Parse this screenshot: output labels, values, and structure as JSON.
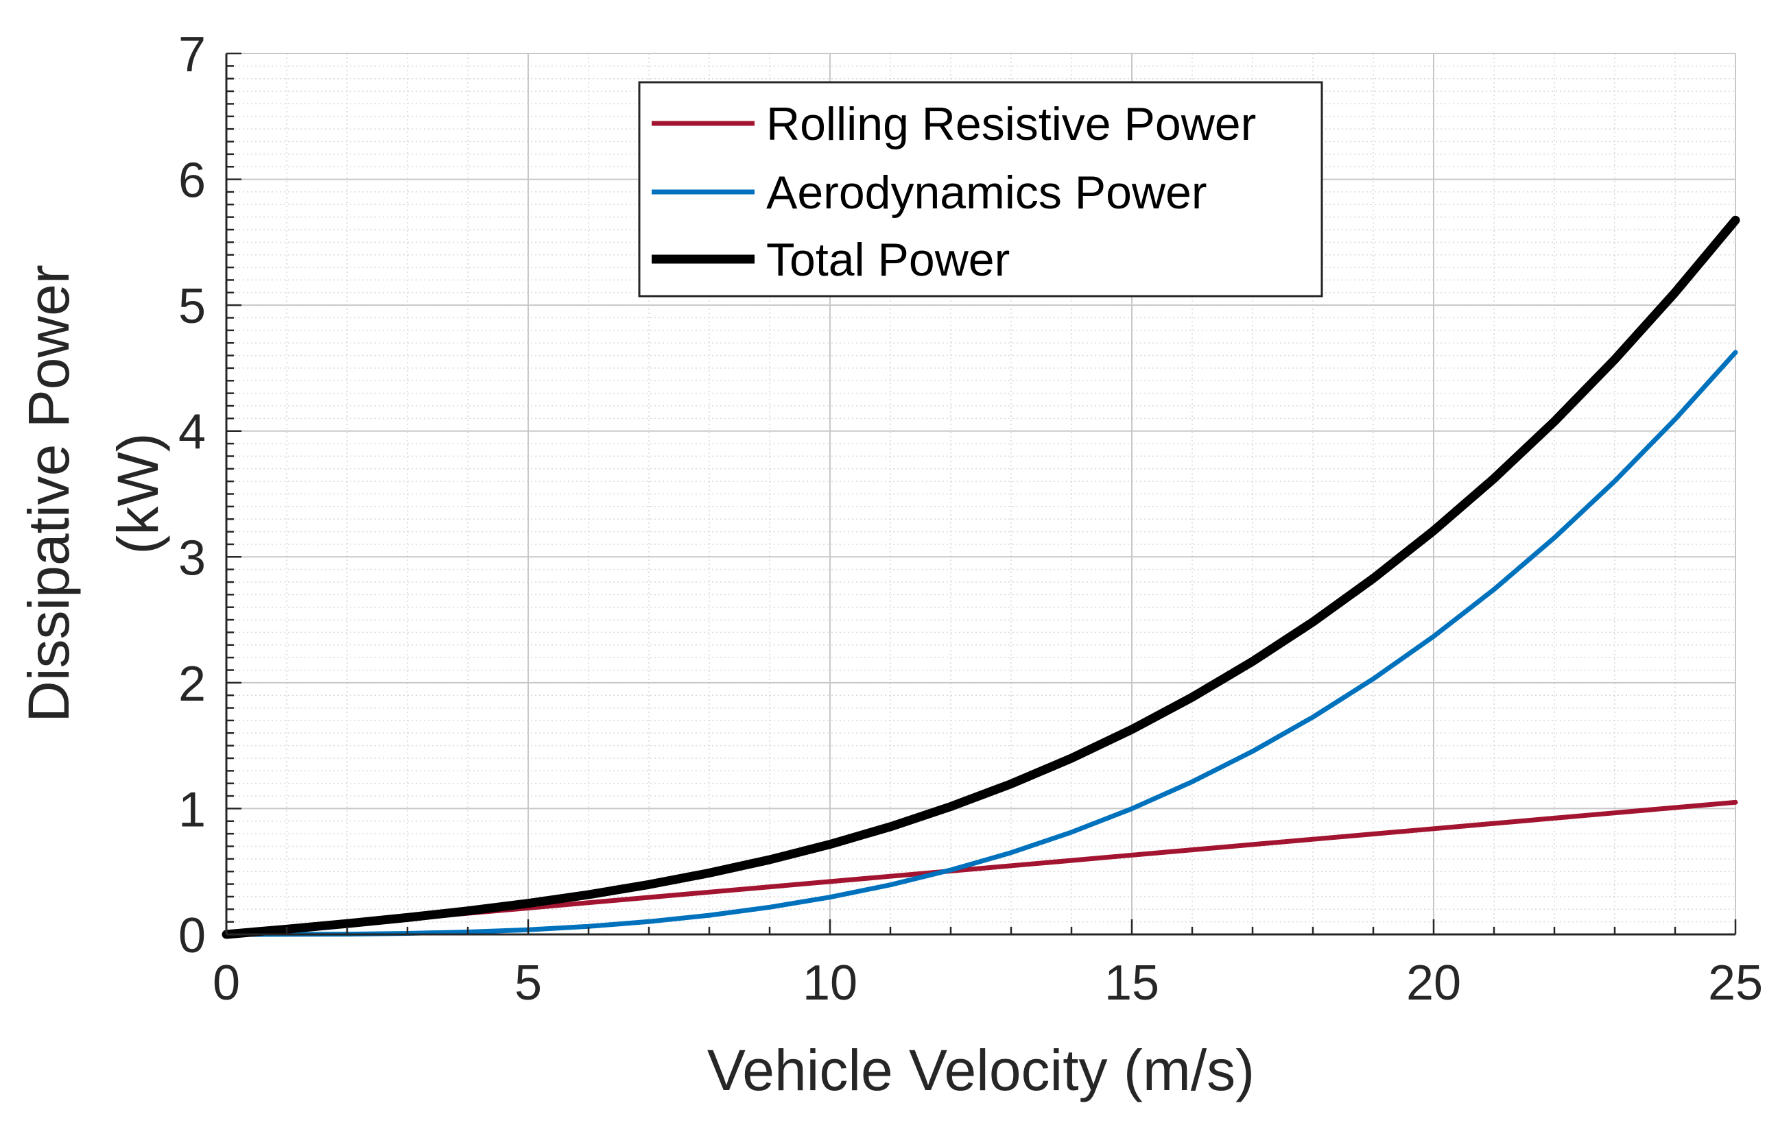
{
  "chart_data": {
    "type": "line",
    "xlabel": "Vehicle Velocity (m/s)",
    "ylabel_line1": "Dissipative Power",
    "ylabel_line2": "(kW)",
    "xlim": [
      0,
      25
    ],
    "ylim": [
      0,
      7
    ],
    "xticks": [
      0,
      5,
      10,
      15,
      20,
      25
    ],
    "yticks": [
      0,
      1,
      2,
      3,
      4,
      5,
      6,
      7
    ],
    "xtick_labels": [
      "0",
      "5",
      "10",
      "15",
      "20",
      "25"
    ],
    "ytick_labels": [
      "0",
      "1",
      "2",
      "3",
      "4",
      "5",
      "6",
      "7"
    ],
    "grid": true,
    "minor_grid": true,
    "legend_position": "top-center",
    "x": [
      0,
      1,
      2,
      3,
      4,
      5,
      6,
      7,
      8,
      9,
      10,
      11,
      12,
      13,
      14,
      15,
      16,
      17,
      18,
      19,
      20,
      21,
      22,
      23,
      24,
      25
    ],
    "series": [
      {
        "name": "Rolling Resistive Power",
        "color": "#A2142F",
        "width": "thin",
        "values": [
          0,
          0.042,
          0.084,
          0.126,
          0.168,
          0.21,
          0.252,
          0.294,
          0.336,
          0.378,
          0.42,
          0.462,
          0.504,
          0.546,
          0.588,
          0.63,
          0.672,
          0.714,
          0.756,
          0.798,
          0.84,
          0.882,
          0.924,
          0.966,
          1.008,
          1.05
        ]
      },
      {
        "name": "Aerodynamics Power",
        "color": "#0072BD",
        "width": "thin",
        "values": [
          0,
          0.0003,
          0.0024,
          0.008,
          0.019,
          0.037,
          0.064,
          0.102,
          0.152,
          0.216,
          0.296,
          0.394,
          0.512,
          0.65,
          0.812,
          0.999,
          1.213,
          1.455,
          1.727,
          2.031,
          2.368,
          2.741,
          3.152,
          3.602,
          4.093,
          4.625
        ]
      },
      {
        "name": "Total Power",
        "color": "#000000",
        "width": "thick",
        "values": [
          0,
          0.042,
          0.086,
          0.134,
          0.187,
          0.247,
          0.316,
          0.396,
          0.488,
          0.594,
          0.716,
          0.856,
          1.016,
          1.196,
          1.4,
          1.629,
          1.885,
          2.169,
          2.483,
          2.829,
          3.208,
          3.623,
          4.076,
          4.568,
          5.101,
          5.675
        ]
      }
    ]
  }
}
